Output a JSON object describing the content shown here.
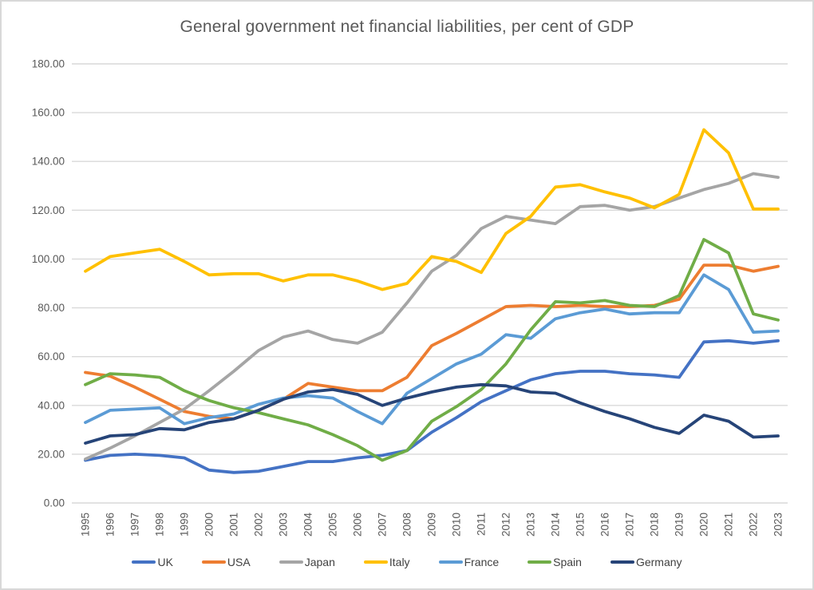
{
  "chart_data": {
    "type": "line",
    "title": "General government net financial liabilities, per cent of GDP",
    "xlabel": "",
    "ylabel": "",
    "ylim": [
      0,
      180
    ],
    "ytick_step": 20,
    "ytick_decimals": 2,
    "grid": true,
    "legend_position": "bottom",
    "x": [
      1995,
      1996,
      1997,
      1998,
      1999,
      2000,
      2001,
      2002,
      2003,
      2004,
      2005,
      2006,
      2007,
      2008,
      2009,
      2010,
      2011,
      2012,
      2013,
      2014,
      2015,
      2016,
      2017,
      2018,
      2019,
      2020,
      2021,
      2022,
      2023
    ],
    "series": [
      {
        "name": "UK",
        "color": "#4472C4",
        "values": [
          17.5,
          19.5,
          20,
          19.5,
          18.5,
          13.5,
          12.5,
          13,
          15,
          17,
          17,
          18.5,
          19.5,
          21.5,
          29,
          35,
          41.5,
          46,
          50.5,
          53,
          54,
          54,
          53,
          52.5,
          51.5,
          66,
          66.5,
          65.5,
          66.5
        ]
      },
      {
        "name": "USA",
        "color": "#ED7D31",
        "values": [
          53.5,
          52,
          47.5,
          42.5,
          37.5,
          35.5,
          34.5,
          38,
          42.5,
          49,
          47.5,
          46,
          46,
          51.5,
          64.5,
          69.5,
          75,
          80.5,
          81,
          80.5,
          81,
          80.5,
          80.5,
          81,
          83.5,
          97.5,
          97.5,
          95,
          97
        ]
      },
      {
        "name": "Japan",
        "color": "#A5A5A5",
        "values": [
          18,
          22.5,
          27.5,
          33,
          38.5,
          46,
          54,
          62.5,
          68,
          70.5,
          67,
          65.5,
          70,
          82,
          95,
          101.5,
          112.5,
          117.5,
          116,
          114.5,
          121.5,
          122,
          120,
          121.5,
          125,
          128.5,
          131,
          135,
          133.5
        ]
      },
      {
        "name": "Italy",
        "color": "#FFC000",
        "values": [
          95,
          101,
          102.5,
          104,
          99,
          93.5,
          94,
          94,
          91,
          93.5,
          93.5,
          91,
          87.5,
          90,
          101,
          99,
          94.5,
          110.5,
          117.5,
          129.5,
          130.5,
          127.5,
          125,
          121,
          126.5,
          153,
          143.5,
          120.5,
          120.5
        ]
      },
      {
        "name": "France",
        "color": "#5B9BD5",
        "values": [
          33,
          38,
          38.5,
          39,
          32.5,
          35,
          36.5,
          40.5,
          43,
          44,
          43,
          37.5,
          32.5,
          45,
          51,
          57,
          61,
          69,
          67.5,
          75.5,
          78,
          79.5,
          77.5,
          78,
          78,
          93.5,
          87.5,
          70,
          70.5
        ]
      },
      {
        "name": "Spain",
        "color": "#70AD47",
        "values": [
          48.5,
          53,
          52.5,
          51.5,
          46,
          42,
          39,
          37,
          34.5,
          32,
          28,
          23.5,
          17.5,
          21.5,
          33.5,
          39.5,
          46.5,
          57,
          71,
          82.5,
          82,
          83,
          81,
          80.5,
          85,
          108,
          102.5,
          77.5,
          75
        ]
      },
      {
        "name": "Germany",
        "color": "#264478",
        "values": [
          24.5,
          27.5,
          28,
          30.5,
          30,
          33,
          34.5,
          38,
          42.5,
          45.5,
          46.5,
          44.5,
          40,
          43,
          45.5,
          47.5,
          48.5,
          48,
          45.5,
          45,
          41,
          37.5,
          34.5,
          31,
          28.5,
          36,
          33.5,
          27,
          27.5
        ]
      }
    ]
  },
  "style": {
    "background": "#FFFFFF",
    "frame_border": "#D8D8D8",
    "grid_color": "#D9D9D9",
    "axis_text_color": "#595959",
    "title_color": "#595959",
    "legend_text_color": "#404040"
  }
}
